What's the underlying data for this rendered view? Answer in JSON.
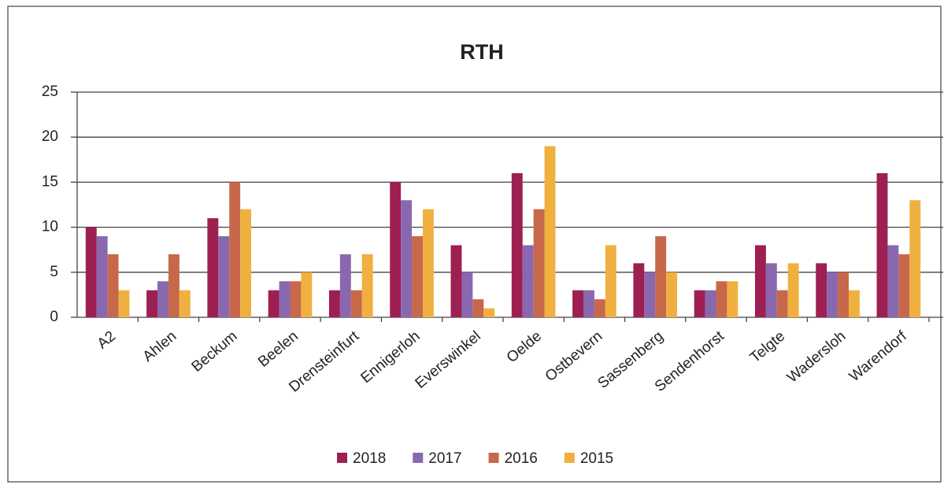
{
  "chart_data": {
    "type": "bar",
    "title": "RTH",
    "categories": [
      "A2",
      "Ahlen",
      "Beckum",
      "Beelen",
      "Drensteinfurt",
      "Ennigerloh",
      "Everswinkel",
      "Oelde",
      "Ostbevern",
      "Sassenberg",
      "Sendenhorst",
      "Telgte",
      "Wadersloh",
      "Warendorf"
    ],
    "series": [
      {
        "name": "2018",
        "color": "#9e1f52",
        "values": [
          10,
          3,
          11,
          3,
          3,
          15,
          8,
          16,
          3,
          6,
          3,
          8,
          6,
          16
        ]
      },
      {
        "name": "2017",
        "color": "#8a68b0",
        "values": [
          9,
          4,
          9,
          4,
          7,
          13,
          5,
          8,
          3,
          5,
          3,
          6,
          5,
          8
        ]
      },
      {
        "name": "2016",
        "color": "#c8684a",
        "values": [
          7,
          7,
          15,
          4,
          3,
          9,
          2,
          12,
          2,
          9,
          4,
          3,
          5,
          7
        ]
      },
      {
        "name": "2015",
        "color": "#f0b040",
        "values": [
          3,
          3,
          12,
          5,
          7,
          12,
          1,
          19,
          8,
          5,
          4,
          6,
          3,
          13
        ]
      }
    ],
    "ylim": [
      0,
      25
    ],
    "yticks": [
      0,
      5,
      10,
      15,
      20,
      25
    ],
    "grid": true,
    "legend": "bottom"
  }
}
